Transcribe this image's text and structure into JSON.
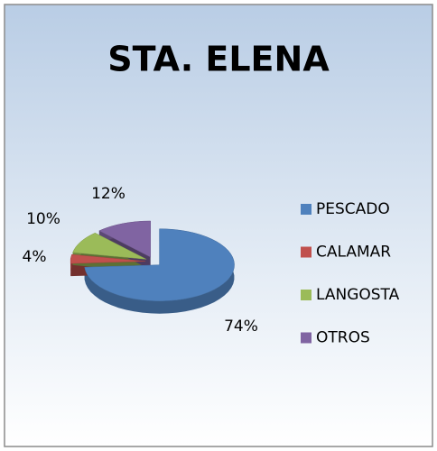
{
  "chart_data": {
    "type": "pie",
    "title": "STA. ELENA",
    "categories": [
      "PESCADO",
      "CALAMAR",
      "LANGOSTA",
      "OTROS"
    ],
    "values": [
      74,
      4,
      10,
      12
    ],
    "value_labels": [
      "74%",
      "4%",
      "10%",
      "12%"
    ],
    "colors": [
      "#4f81bd",
      "#c0504d",
      "#9bbb59",
      "#8064a2"
    ],
    "legend": "right"
  }
}
